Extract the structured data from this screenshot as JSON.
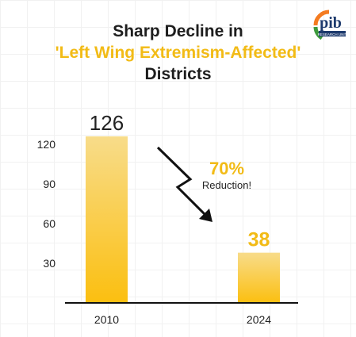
{
  "title": {
    "line1": "Sharp Decline in",
    "line2": "'Left Wing Extremism-Affected'",
    "line3": "Districts"
  },
  "logo": {
    "text": "pib",
    "subtext": "RESEARCH UNIT"
  },
  "annotation": {
    "percent": "70%",
    "label": "Reduction!"
  },
  "colors": {
    "accent": "#f2bb16",
    "bar_top": "#f8dc8a",
    "bar_bottom": "#fbbf10",
    "text": "#1e1e1e"
  },
  "chart_data": {
    "type": "bar",
    "categories": [
      "2010",
      "2024"
    ],
    "values": [
      126,
      38
    ],
    "value_labels": [
      "126",
      "38"
    ],
    "yticks": [
      30,
      60,
      90,
      120
    ],
    "ylim": [
      0,
      130
    ],
    "grid": false,
    "title": "Sharp Decline in 'Left Wing Extremism-Affected' Districts"
  }
}
